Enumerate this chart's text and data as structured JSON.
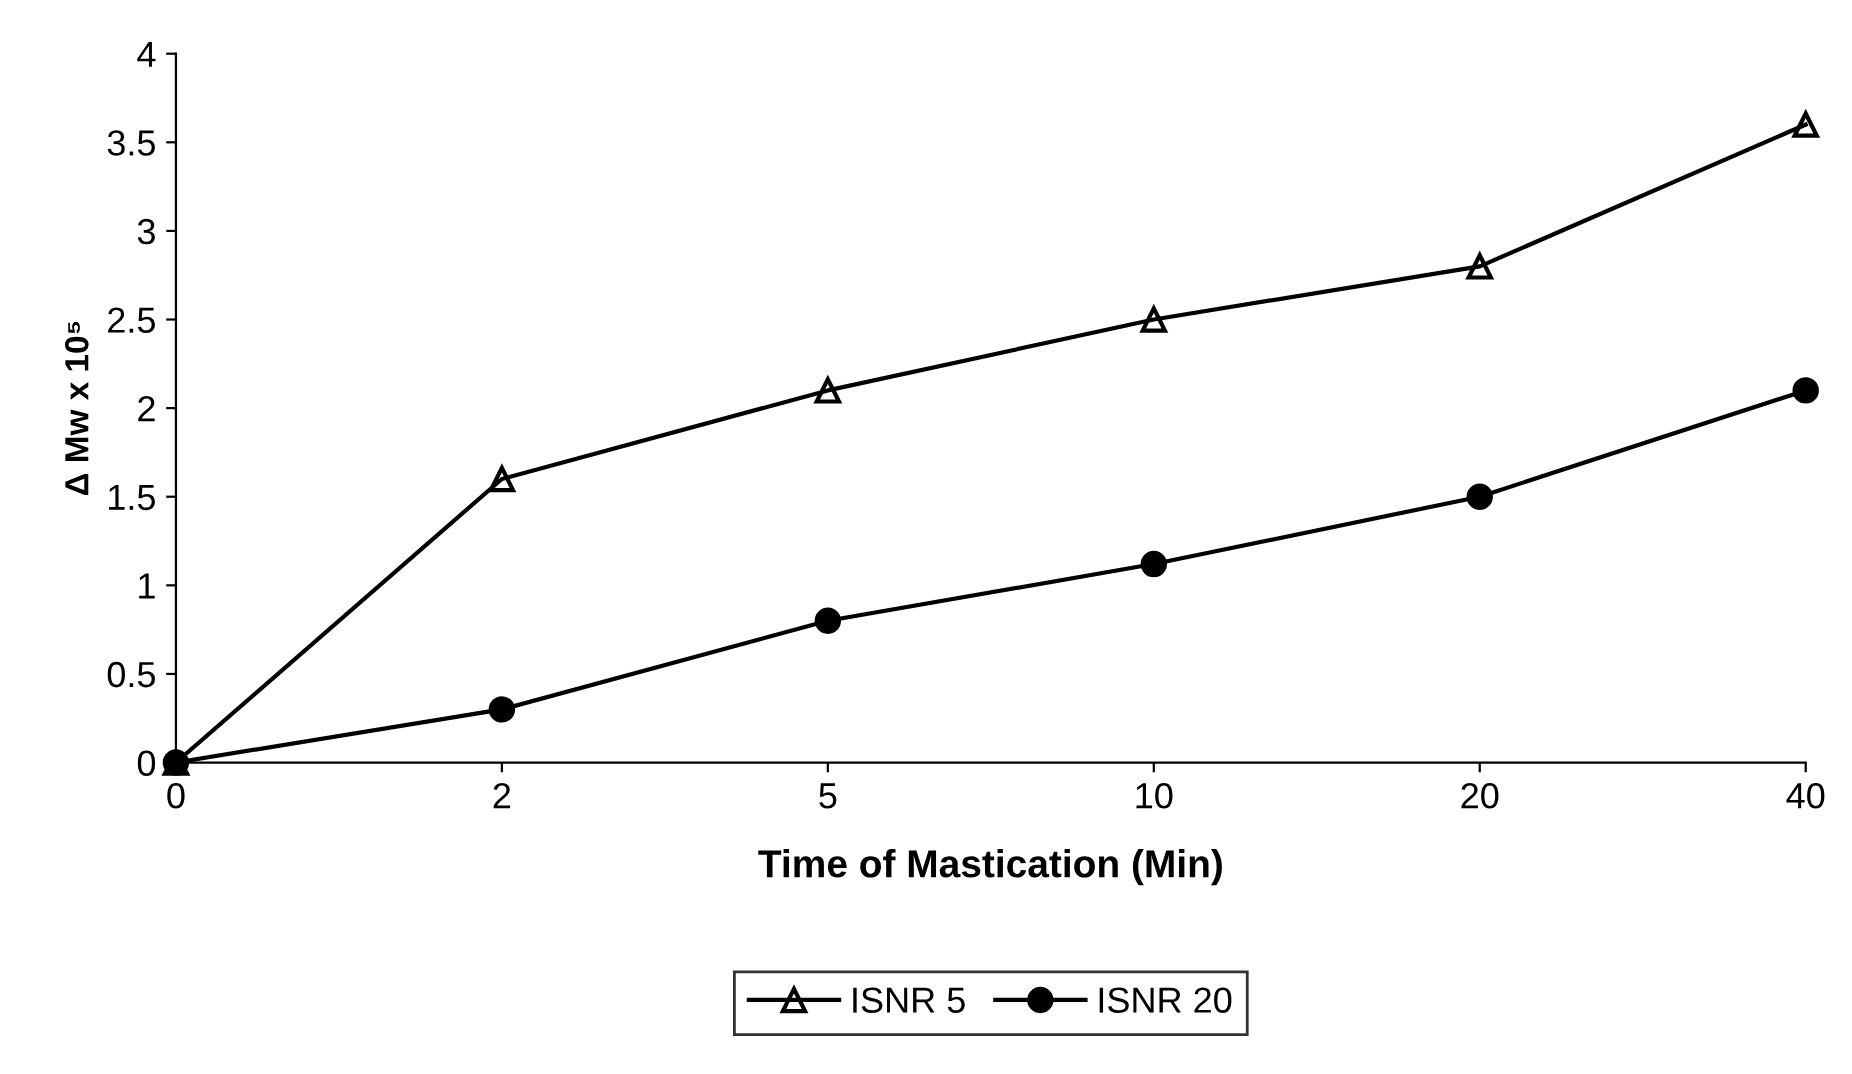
{
  "chart_data": {
    "type": "line",
    "xlabel": "Time of Mastication (Min)",
    "ylabel": "Δ Mw x 10⁵",
    "categories": [
      "0",
      "2",
      "5",
      "10",
      "20",
      "40"
    ],
    "series": [
      {
        "name": "ISNR 5",
        "color": "#000000",
        "marker": "triangle",
        "values": [
          0,
          1.6,
          2.1,
          2.5,
          2.8,
          3.6
        ]
      },
      {
        "name": "ISNR 20",
        "color": "#000000",
        "marker": "circle",
        "values": [
          0,
          0.3,
          0.8,
          1.12,
          1.5,
          2.1
        ]
      }
    ],
    "ylim": [
      0,
      4
    ],
    "yticks": [
      0,
      0.5,
      1,
      1.5,
      2,
      2.5,
      3,
      3.5,
      4
    ],
    "grid": false,
    "legend": "bottom",
    "line_style": "solid"
  }
}
